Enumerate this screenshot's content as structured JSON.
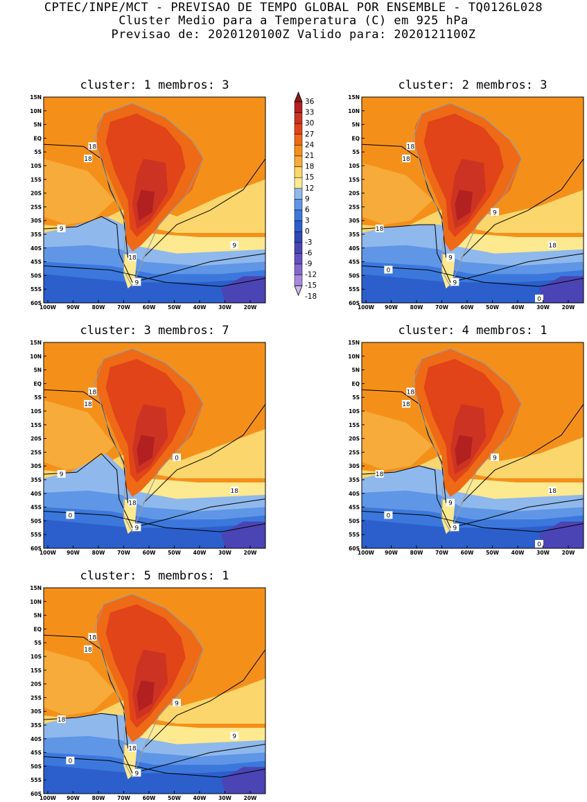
{
  "header": {
    "line1": "CPTEC/INPE/MCT - PREVISAO DE TEMPO GLOBAL POR ENSEMBLE - TQ0126L028",
    "line2": "Cluster Medio para a Temperatura (C) em 925 hPa",
    "line3": "Previsao de: 2020120100Z   Valido para: 2020121100Z"
  },
  "panels": [
    {
      "title": "cluster: 1   membros: 3",
      "contour_labels": [
        "18",
        "18",
        "9",
        "18",
        "9",
        "9"
      ]
    },
    {
      "title": "cluster: 2   membros: 3",
      "contour_labels": [
        "18",
        "18",
        "18",
        "9",
        "18",
        "9",
        "9",
        "0",
        "0"
      ]
    },
    {
      "title": "cluster: 3   membros: 7",
      "contour_labels": [
        "18",
        "18",
        "9",
        "18",
        "18",
        "9",
        "0",
        "0"
      ]
    },
    {
      "title": "cluster: 4   membros: 1",
      "contour_labels": [
        "18",
        "18",
        "18",
        "9",
        "18",
        "9",
        "9",
        "0",
        "0"
      ]
    },
    {
      "title": "cluster: 5   membros: 1",
      "contour_labels": [
        "18",
        "18",
        "18",
        "18",
        "9",
        "9",
        "9",
        "0"
      ]
    }
  ],
  "axes": {
    "lat_labels": [
      "15N",
      "10N",
      "5N",
      "EQ",
      "5S",
      "10S",
      "15S",
      "20S",
      "25S",
      "30S",
      "35S",
      "40S",
      "45S",
      "50S",
      "55S",
      "60S"
    ],
    "lon_labels": [
      "100W",
      "90W",
      "80W",
      "70W",
      "60W",
      "50W",
      "40W",
      "30W",
      "20W"
    ]
  },
  "colorbar": {
    "labels": [
      "36",
      "33",
      "30",
      "27",
      "24",
      "21",
      "18",
      "15",
      "12",
      "9",
      "6",
      "3",
      "0",
      "-3",
      "-6",
      "-9",
      "-12",
      "-15",
      "-18"
    ],
    "colors": [
      "#8b1a1a",
      "#b22020",
      "#cc3322",
      "#e04418",
      "#ee6a16",
      "#f4901a",
      "#f6ab3a",
      "#fbd66c",
      "#fde98f",
      "#8fb8ec",
      "#5f96e6",
      "#3c78dc",
      "#2c5fcc",
      "#2f48b4",
      "#4b44b4",
      "#6350c0",
      "#8468cc",
      "#a88adc",
      "#cdb7ec"
    ]
  }
}
